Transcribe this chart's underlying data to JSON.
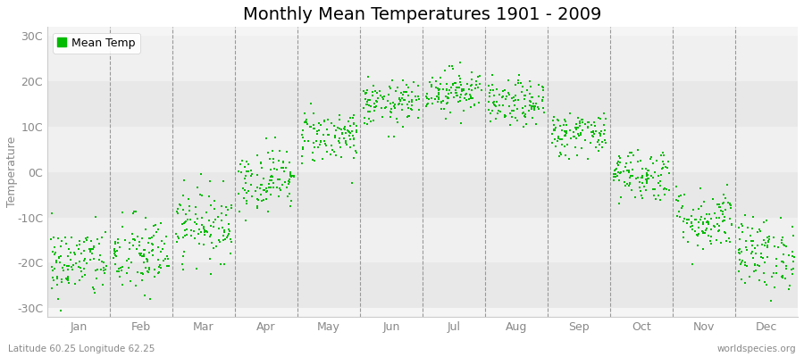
{
  "title": "Monthly Mean Temperatures 1901 - 2009",
  "ylabel": "Temperature",
  "xlabel_labels": [
    "Jan",
    "Feb",
    "Mar",
    "Apr",
    "May",
    "Jun",
    "Jul",
    "Aug",
    "Sep",
    "Oct",
    "Nov",
    "Dec"
  ],
  "ytick_labels": [
    "30C",
    "20C",
    "10C",
    "0C",
    "-10C",
    "-20C",
    "-30C"
  ],
  "ytick_values": [
    30,
    20,
    10,
    0,
    -10,
    -20,
    -30
  ],
  "ylim": [
    -32,
    32
  ],
  "dot_color": "#00BB00",
  "dot_size": 3,
  "legend_label": "Mean Temp",
  "subtitle": "Latitude 60.25 Longitude 62.25",
  "watermark": "worldspecies.org",
  "fig_bg_color": "#ffffff",
  "plot_bg_color": "#f5f5f5",
  "band_colors": [
    "#f0f0f0",
    "#e8e8e8"
  ],
  "mean_temps": [
    -20.0,
    -18.5,
    -11.5,
    -1.5,
    8.0,
    15.0,
    18.0,
    15.0,
    8.5,
    -0.5,
    -10.5,
    -18.0
  ],
  "std_temps": [
    4.0,
    4.5,
    4.0,
    3.5,
    3.0,
    2.5,
    2.5,
    2.5,
    2.5,
    3.0,
    3.5,
    4.0
  ],
  "n_years": 109,
  "random_seed": 42,
  "title_fontsize": 14,
  "axis_fontsize": 9,
  "tick_fontsize": 9,
  "footnote_fontsize": 7.5
}
